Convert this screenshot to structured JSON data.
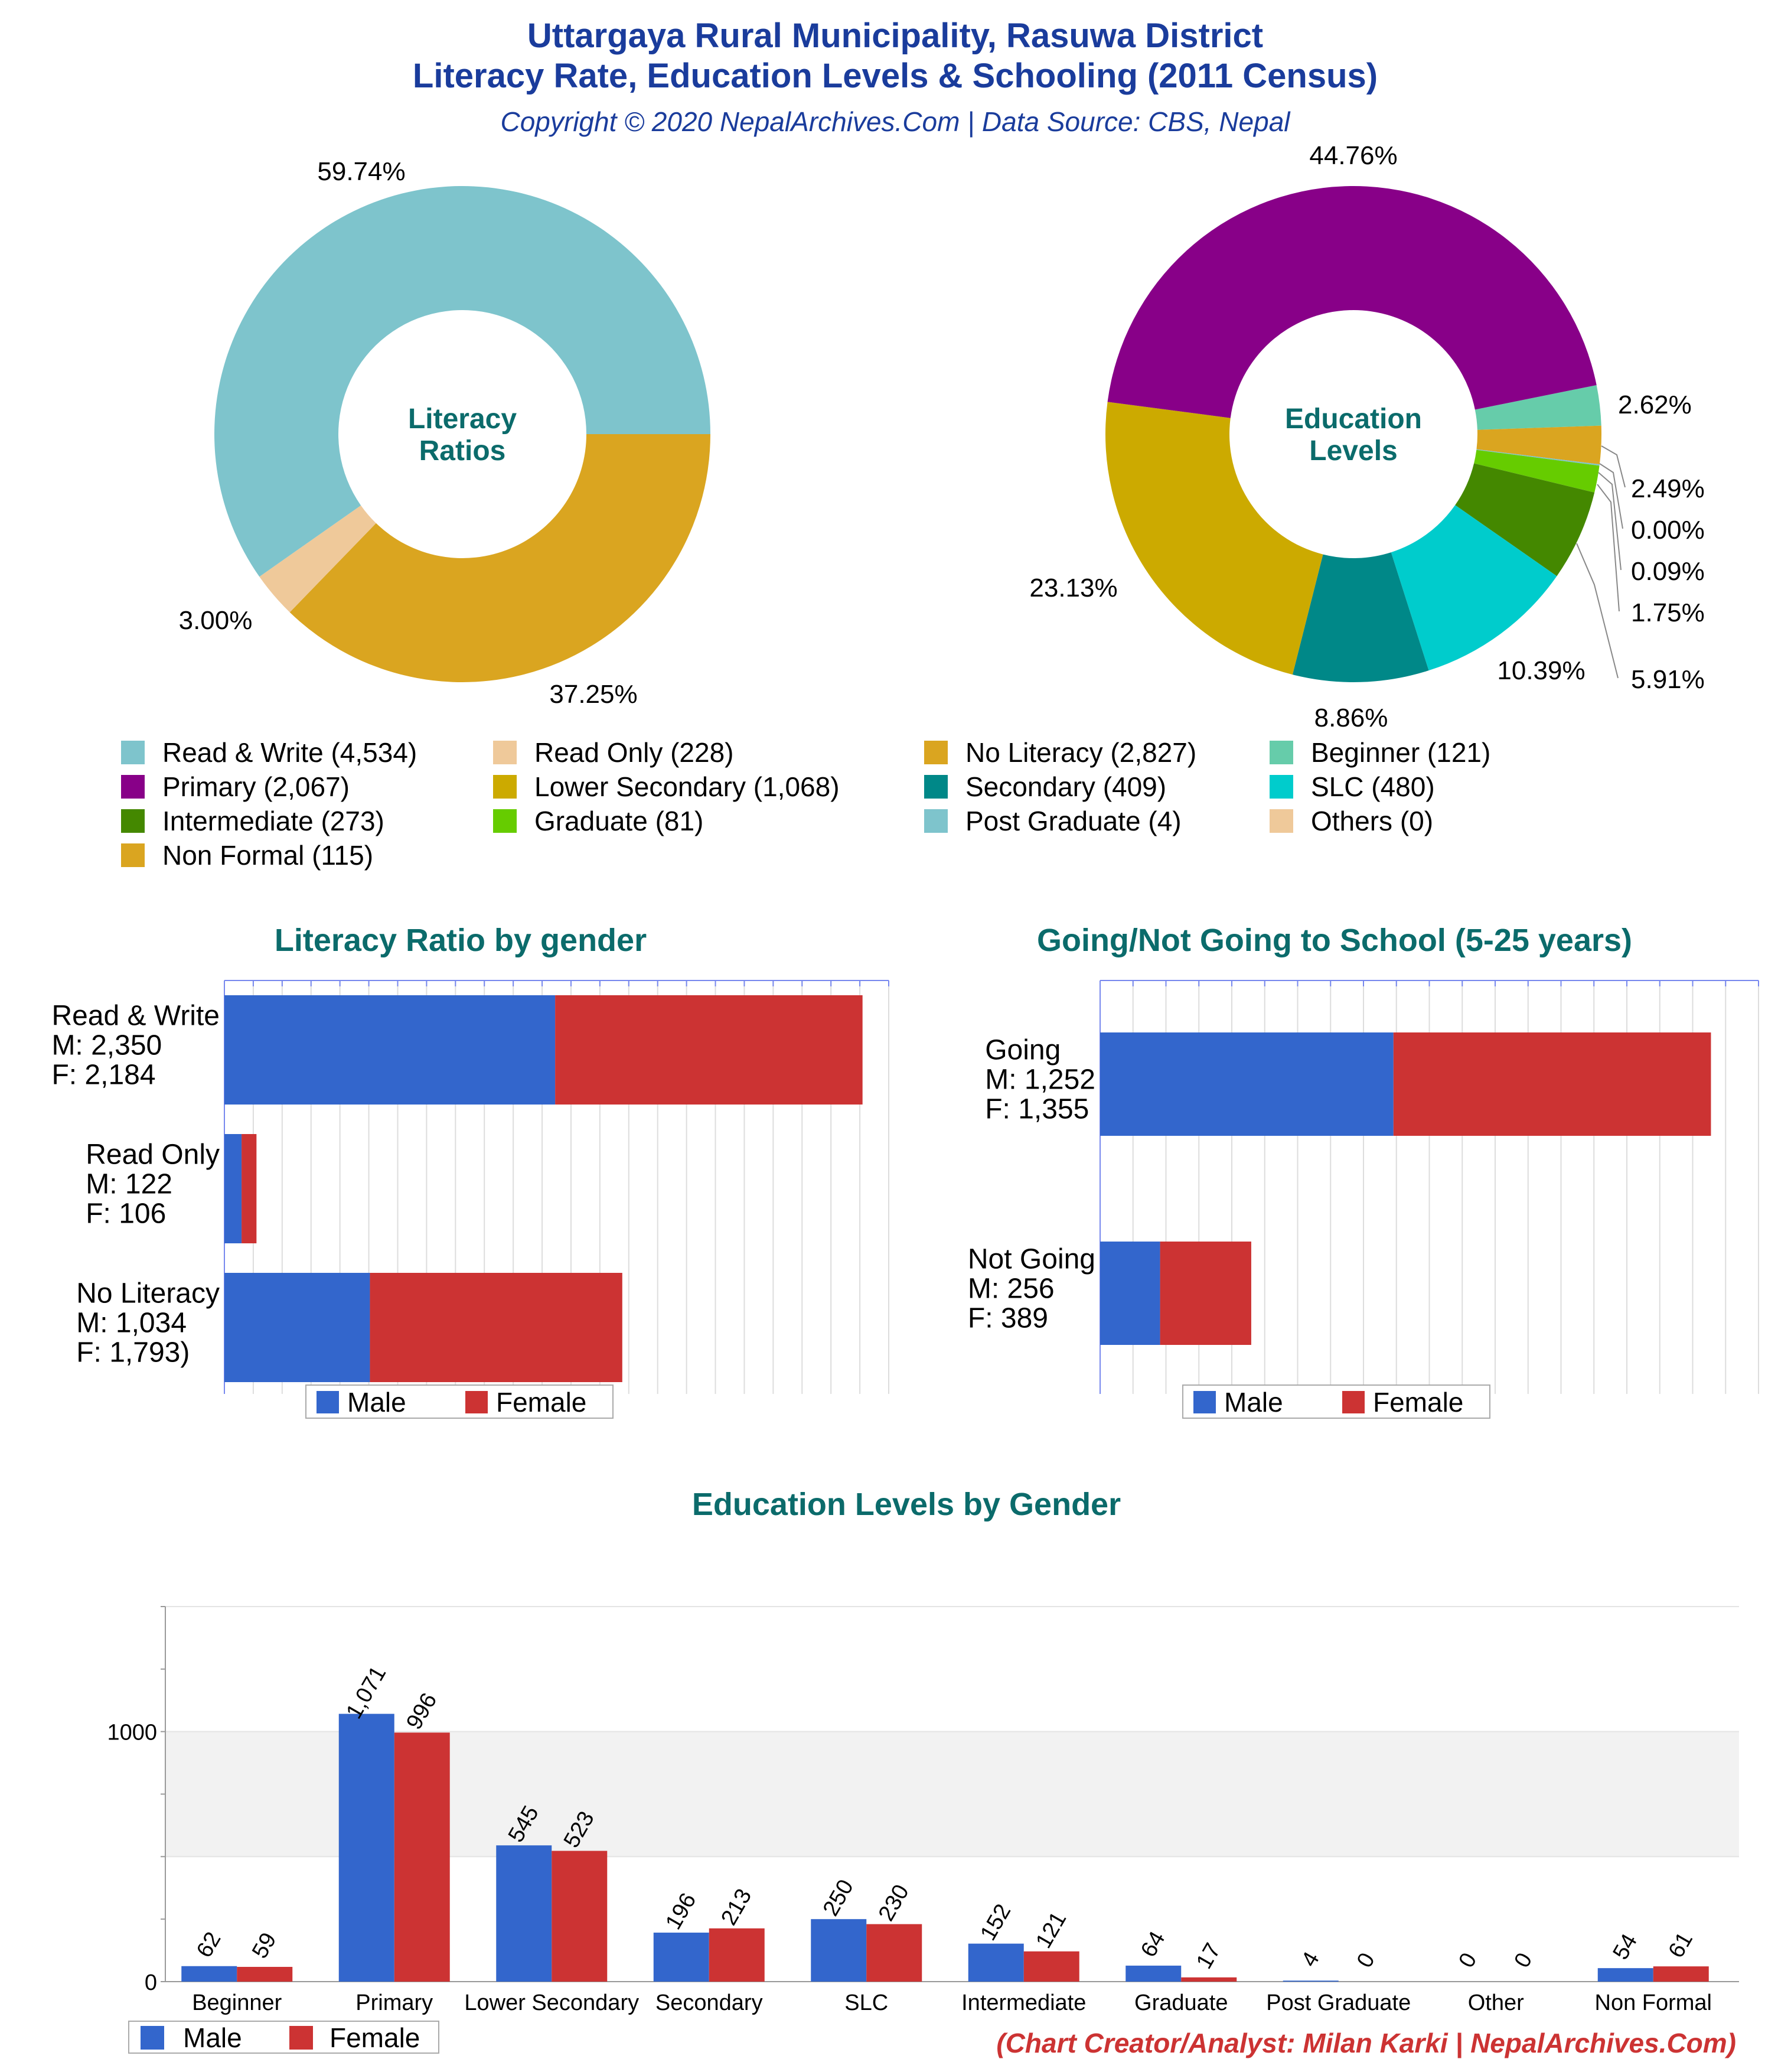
{
  "header": {
    "title_line1": "Uttargaya Rural Municipality, Rasuwa District",
    "title_line2": "Literacy Rate, Education Levels & Schooling (2011 Census)",
    "copyright": "Copyright © 2020 NepalArchives.Com | Data Source: CBS, Nepal"
  },
  "colors": {
    "title_blue": "#1a3c9c",
    "teal_title": "#0b6b6b",
    "male": "#3366cc",
    "female": "#cc3333",
    "credit": "#cc3333"
  },
  "credit": "(Chart Creator/Analyst: Milan Karki | NepalArchives.Com)",
  "chart_data": [
    {
      "type": "pie",
      "title": "Literacy Ratios",
      "slices": [
        {
          "label": "Read & Write",
          "value": 4534,
          "percent": "59.74%",
          "color": "#7ec4cc"
        },
        {
          "label": "Read Only",
          "value": 228,
          "percent": "3.00%",
          "color": "#efc99a"
        },
        {
          "label": "No Literacy",
          "value": 2827,
          "percent": "37.25%",
          "color": "#daa520"
        }
      ]
    },
    {
      "type": "pie",
      "title": "Education Levels",
      "slices": [
        {
          "label": "Beginner",
          "value": 121,
          "percent": "2.62%",
          "color": "#66ccaa"
        },
        {
          "label": "Non Formal",
          "value": 115,
          "percent": "2.49%",
          "color": "#daa520"
        },
        {
          "label": "Others",
          "value": 0,
          "percent": "0.00%",
          "color": "#efc99a"
        },
        {
          "label": "Post Graduate",
          "value": 4,
          "percent": "0.09%",
          "color": "#7ec4cc"
        },
        {
          "label": "Graduate",
          "value": 81,
          "percent": "1.75%",
          "color": "#66cc00"
        },
        {
          "label": "Intermediate",
          "value": 273,
          "percent": "5.91%",
          "color": "#448800"
        },
        {
          "label": "SLC",
          "value": 480,
          "percent": "10.39%",
          "color": "#00cccc"
        },
        {
          "label": "Secondary",
          "value": 409,
          "percent": "8.86%",
          "color": "#008888"
        },
        {
          "label": "Lower Secondary",
          "value": 1068,
          "percent": "23.13%",
          "color": "#ccaa00"
        },
        {
          "label": "Primary",
          "value": 2067,
          "percent": "44.76%",
          "color": "#880088"
        }
      ]
    },
    {
      "type": "bar",
      "orientation": "horizontal",
      "stacked": true,
      "title": "Literacy Ratio by gender",
      "categories": [
        {
          "name": "Read & Write",
          "m_label": "M: 2,350",
          "f_label": "F: 2,184"
        },
        {
          "name": "Read Only",
          "m_label": "M: 122",
          "f_label": "F: 106"
        },
        {
          "name": "No Literacy",
          "m_label": "M: 1,034",
          "f_label": "F: 1,793)"
        }
      ],
      "series": [
        {
          "name": "Male",
          "values": [
            2350,
            122,
            1034
          ]
        },
        {
          "name": "Female",
          "values": [
            2184,
            106,
            1793
          ]
        }
      ],
      "xlim": [
        0,
        4720
      ],
      "legend": "bottom"
    },
    {
      "type": "bar",
      "orientation": "horizontal",
      "stacked": true,
      "title": "Going/Not Going to School (5-25 years)",
      "categories": [
        {
          "name": "Going",
          "m_label": "M: 1,252",
          "f_label": "F: 1,355"
        },
        {
          "name": "Not Going",
          "m_label": "M: 256",
          "f_label": "F: 389"
        }
      ],
      "series": [
        {
          "name": "Male",
          "values": [
            1252,
            256
          ]
        },
        {
          "name": "Female",
          "values": [
            1355,
            389
          ]
        }
      ],
      "xlim": [
        0,
        2810
      ],
      "legend": "bottom"
    },
    {
      "type": "bar",
      "title": "Education Levels by Gender",
      "categories": [
        "Beginner",
        "Primary",
        "Lower Secondary",
        "Secondary",
        "SLC",
        "Intermediate",
        "Graduate",
        "Post Graduate",
        "Other",
        "Non Formal"
      ],
      "series": [
        {
          "name": "Male",
          "values": [
            62,
            1071,
            545,
            196,
            250,
            152,
            64,
            4,
            0,
            54
          ],
          "labels": [
            "62",
            "1,071",
            "545",
            "196",
            "250",
            "152",
            "64",
            "4",
            "0",
            "54"
          ]
        },
        {
          "name": "Female",
          "values": [
            59,
            996,
            523,
            213,
            230,
            121,
            17,
            0,
            0,
            61
          ],
          "labels": [
            "59",
            "996",
            "523",
            "213",
            "230",
            "121",
            "17",
            "0",
            "0",
            "61"
          ]
        }
      ],
      "yticks": [
        "0",
        "1000"
      ],
      "ylim": [
        0,
        1500
      ],
      "grid": true,
      "legend": "bottom-left"
    }
  ],
  "legend_main": [
    {
      "label": "Read & Write (4,534)",
      "color": "#7ec4cc"
    },
    {
      "label": "Read Only (228)",
      "color": "#efc99a"
    },
    {
      "label": "No Literacy (2,827)",
      "color": "#daa520"
    },
    {
      "label": "Beginner (121)",
      "color": "#66ccaa"
    },
    {
      "label": "Primary (2,067)",
      "color": "#880088"
    },
    {
      "label": "Lower Secondary (1,068)",
      "color": "#ccaa00"
    },
    {
      "label": "Secondary (409)",
      "color": "#008888"
    },
    {
      "label": "SLC (480)",
      "color": "#00cccc"
    },
    {
      "label": "Intermediate (273)",
      "color": "#448800"
    },
    {
      "label": "Graduate (81)",
      "color": "#66cc00"
    },
    {
      "label": "Post Graduate (4)",
      "color": "#7ec4cc"
    },
    {
      "label": "Others (0)",
      "color": "#efc99a"
    },
    {
      "label": "Non Formal (115)",
      "color": "#daa520"
    }
  ]
}
